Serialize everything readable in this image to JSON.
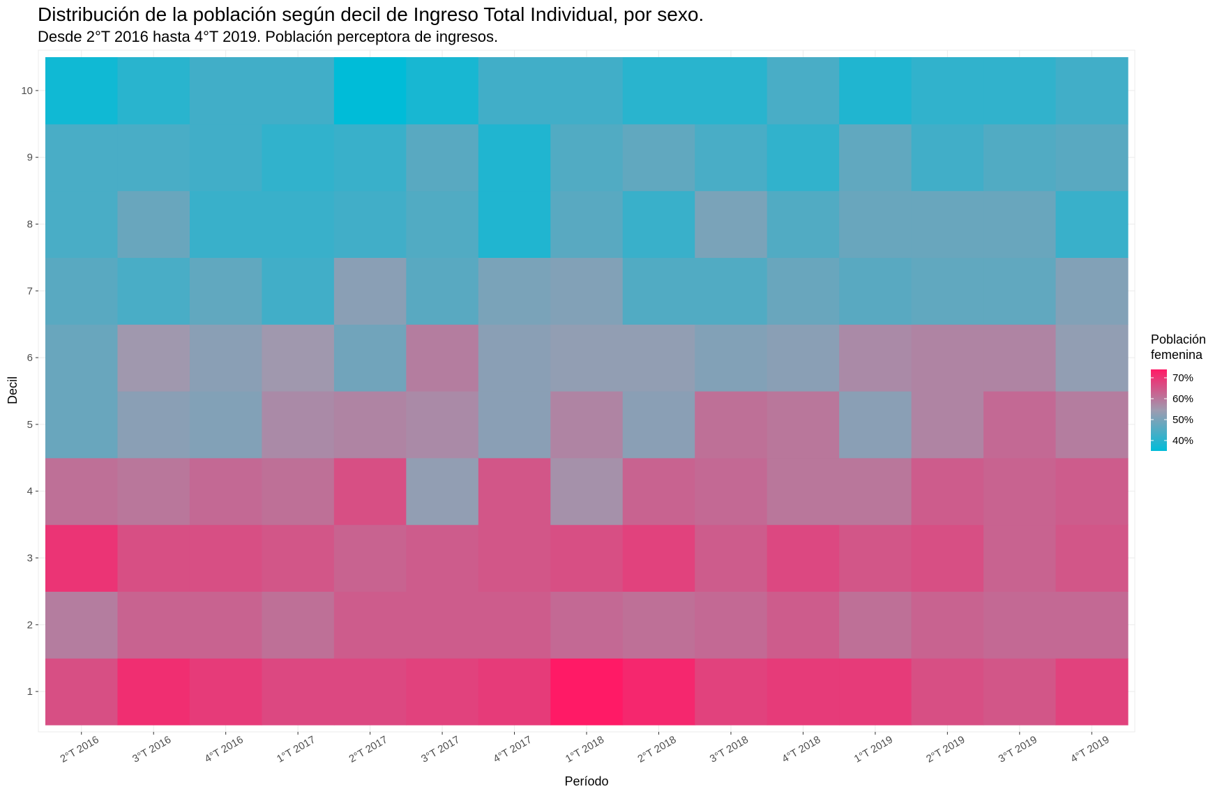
{
  "chart_data": {
    "type": "heatmap",
    "title": "Distribución de la población según decil de Ingreso Total Individual, por sexo.",
    "subtitle": "Desde 2°T 2016 hasta 4°T 2019. Población perceptora de ingresos.",
    "xlabel": "Período",
    "ylabel": "Decil",
    "x_categories": [
      "2°T 2016",
      "3°T 2016",
      "4°T 2016",
      "1°T 2017",
      "2°T 2017",
      "3°T 2017",
      "4°T 2017",
      "1°T 2018",
      "2°T 2018",
      "3°T 2018",
      "4°T 2018",
      "1°T 2019",
      "2°T 2019",
      "3°T 2019",
      "4°T 2019"
    ],
    "y_categories": [
      "1",
      "2",
      "3",
      "4",
      "5",
      "6",
      "7",
      "8",
      "9",
      "10"
    ],
    "values": [
      [
        66,
        59,
        70,
        61,
        48,
        48,
        46,
        44,
        44,
        37
      ],
      [
        71,
        63,
        66,
        60,
        52,
        55,
        44,
        48,
        44,
        40
      ],
      [
        69,
        63,
        66,
        62,
        51,
        52,
        47,
        42,
        43,
        43
      ],
      [
        67,
        61,
        65,
        61,
        57,
        55,
        43,
        42,
        41,
        43
      ],
      [
        67,
        64,
        63,
        66,
        58,
        49,
        52,
        43,
        42,
        35
      ],
      [
        68,
        64,
        64,
        53,
        57,
        59,
        46,
        45,
        46,
        38
      ],
      [
        69,
        64,
        65,
        65,
        52,
        52,
        50,
        39,
        39,
        43
      ],
      [
        74,
        62,
        66,
        56,
        58,
        53,
        51,
        46,
        45,
        43
      ],
      [
        72,
        61,
        68,
        63,
        52,
        53,
        45,
        42,
        47,
        40
      ],
      [
        68,
        62,
        64,
        62,
        61,
        51,
        45,
        50,
        44,
        40
      ],
      [
        69,
        64,
        67,
        60,
        60,
        52,
        48,
        45,
        41,
        44
      ],
      [
        69,
        61,
        65,
        60,
        52,
        57,
        46,
        48,
        47,
        39
      ],
      [
        66,
        63,
        66,
        64,
        58,
        58,
        47,
        48,
        43,
        41
      ],
      [
        65,
        62,
        63,
        63,
        62,
        58,
        47,
        48,
        45,
        41
      ],
      [
        68,
        62,
        65,
        64,
        59,
        53,
        51,
        42,
        46,
        43
      ]
    ],
    "value_unit": "%",
    "colorscale": {
      "min": 35,
      "max": 74,
      "low": "#00bcd8",
      "mid": "#9e9bb0",
      "high": "#ff1a66"
    },
    "legend": {
      "title_lines": [
        "Población",
        "femenina"
      ],
      "ticks": [
        70,
        60,
        50,
        40
      ],
      "tick_labels": [
        "70%",
        "60%",
        "50%",
        "40%"
      ],
      "position": "right"
    },
    "grid": true
  }
}
